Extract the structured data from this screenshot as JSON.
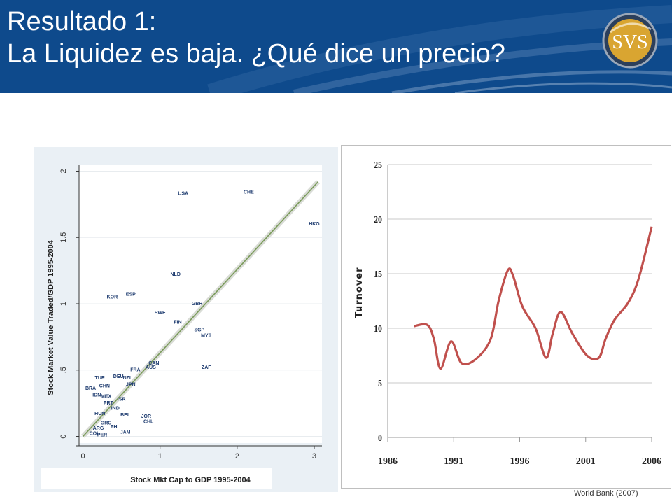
{
  "header": {
    "title_line1": "Resultado 1:",
    "title_line2": "La Liquidez es baja. ¿Qué dice un precio?",
    "logo_text": "SVS"
  },
  "source": "World Bank (2007)",
  "colors": {
    "header_bg": "#0e4a8c",
    "scatter_label": "#1c3a6e",
    "fit_line": "#7a9a5a",
    "turnover_line": "#c0504d"
  },
  "chart_data": [
    {
      "type": "scatter",
      "xlabel": "Stock Mkt Cap to GDP 1995-2004",
      "ylabel": "Stock Market Value Traded/GDP 1995-2004",
      "xlim": [
        -0.05,
        3.1
      ],
      "ylim": [
        -0.05,
        2.05
      ],
      "xticks": [
        "0",
        "1",
        "2",
        "3"
      ],
      "yticks": [
        "0",
        ".5",
        "1",
        "1.5",
        "2"
      ],
      "fit_line": {
        "x": [
          0.0,
          3.05
        ],
        "y": [
          0.0,
          1.92
        ]
      },
      "points": [
        {
          "label": "USA",
          "x": 1.3,
          "y": 1.83
        },
        {
          "label": "CHE",
          "x": 2.15,
          "y": 1.84
        },
        {
          "label": "HKG",
          "x": 3.0,
          "y": 1.6
        },
        {
          "label": "NLD",
          "x": 1.2,
          "y": 1.22
        },
        {
          "label": "KOR",
          "x": 0.38,
          "y": 1.05
        },
        {
          "label": "ESP",
          "x": 0.62,
          "y": 1.07
        },
        {
          "label": "GBR",
          "x": 1.48,
          "y": 1.0
        },
        {
          "label": "SWE",
          "x": 1.0,
          "y": 0.93
        },
        {
          "label": "FIN",
          "x": 1.23,
          "y": 0.86
        },
        {
          "label": "SGP",
          "x": 1.51,
          "y": 0.8
        },
        {
          "label": "MYS",
          "x": 1.6,
          "y": 0.76
        },
        {
          "label": "ZAF",
          "x": 1.6,
          "y": 0.52
        },
        {
          "label": "CAN",
          "x": 0.92,
          "y": 0.55
        },
        {
          "label": "AUS",
          "x": 0.88,
          "y": 0.52
        },
        {
          "label": "FRA",
          "x": 0.68,
          "y": 0.5
        },
        {
          "label": "TUR",
          "x": 0.22,
          "y": 0.44
        },
        {
          "label": "DEU",
          "x": 0.46,
          "y": 0.45
        },
        {
          "label": "NZL",
          "x": 0.58,
          "y": 0.44
        },
        {
          "label": "BRA",
          "x": 0.1,
          "y": 0.36
        },
        {
          "label": "CHN",
          "x": 0.28,
          "y": 0.38
        },
        {
          "label": "JPN",
          "x": 0.62,
          "y": 0.39
        },
        {
          "label": "IDN",
          "x": 0.18,
          "y": 0.31
        },
        {
          "label": "MEX",
          "x": 0.3,
          "y": 0.3
        },
        {
          "label": "ISR",
          "x": 0.5,
          "y": 0.28
        },
        {
          "label": "PRT",
          "x": 0.33,
          "y": 0.25
        },
        {
          "label": "IND",
          "x": 0.42,
          "y": 0.21
        },
        {
          "label": "HUN",
          "x": 0.22,
          "y": 0.17
        },
        {
          "label": "BEL",
          "x": 0.55,
          "y": 0.16
        },
        {
          "label": "JOR",
          "x": 0.82,
          "y": 0.15
        },
        {
          "label": "CHL",
          "x": 0.85,
          "y": 0.11
        },
        {
          "label": "GRC",
          "x": 0.3,
          "y": 0.1
        },
        {
          "label": "ARG",
          "x": 0.2,
          "y": 0.06
        },
        {
          "label": "PHL",
          "x": 0.42,
          "y": 0.07
        },
        {
          "label": "JAM",
          "x": 0.55,
          "y": 0.03
        },
        {
          "label": "COL",
          "x": 0.15,
          "y": 0.02
        },
        {
          "label": "PER",
          "x": 0.25,
          "y": 0.01
        }
      ]
    },
    {
      "type": "line",
      "ylabel": "Turnover",
      "xlim": [
        1986,
        2006
      ],
      "ylim": [
        0,
        25
      ],
      "xticks": [
        "1986",
        "1991",
        "1996",
        "2001",
        "2006"
      ],
      "yticks": [
        "0",
        "5",
        "10",
        "15",
        "20",
        "25"
      ],
      "series": [
        {
          "x": [
            1988,
            1989,
            1989.5,
            1990,
            1990.8,
            1991.6,
            1992.7,
            1993.8,
            1994.4,
            1995.1,
            1995.5,
            1996.2,
            1997.2,
            1998.0,
            1998.5,
            1999.1,
            2000.0,
            2001.1,
            2002.0,
            2002.5,
            2003.2,
            2004.2,
            2005.0,
            2006.0
          ],
          "y": [
            10.2,
            10.3,
            9.0,
            6.3,
            8.8,
            6.8,
            7.2,
            9.0,
            12.5,
            15.3,
            14.8,
            12.0,
            10.0,
            7.3,
            9.5,
            11.5,
            9.5,
            7.5,
            7.3,
            9.0,
            10.8,
            12.3,
            14.5,
            19.3
          ]
        }
      ]
    }
  ]
}
